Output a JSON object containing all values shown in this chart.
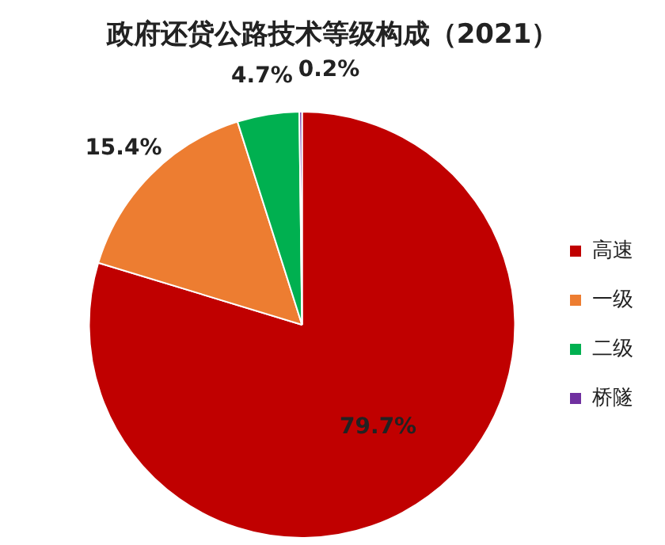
{
  "chart_data": {
    "type": "pie",
    "title": "政府还贷公路技术等级构成（2021）",
    "categories": [
      "高速",
      "一级",
      "二级",
      "桥隧"
    ],
    "values": [
      79.7,
      15.4,
      4.7,
      0.2
    ],
    "colors": [
      "#c00000",
      "#ed7d31",
      "#00b050",
      "#7030a0"
    ],
    "value_labels": [
      "79.7%",
      "15.4%",
      "4.7%",
      "0.2%"
    ],
    "legend": "right"
  }
}
